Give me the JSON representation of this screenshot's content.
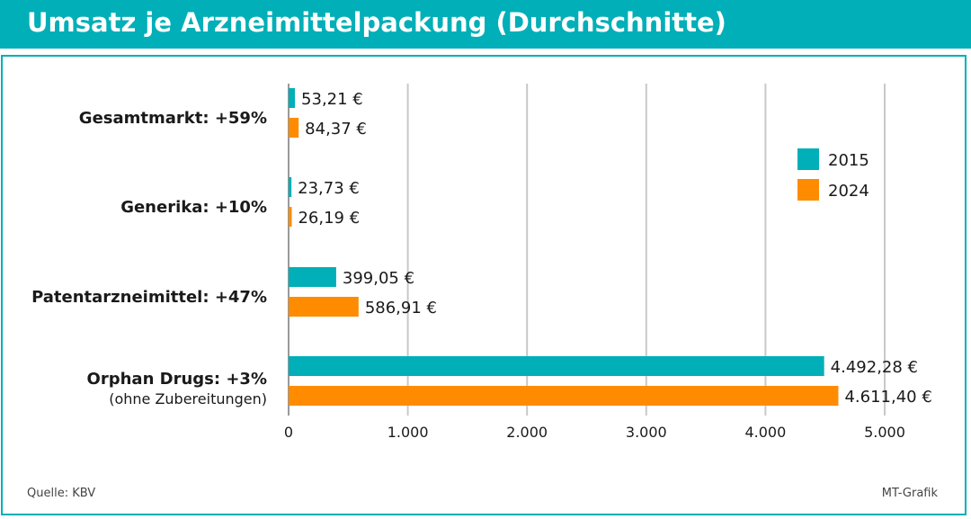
{
  "colors": {
    "accent": "#00afb7",
    "series_2015": "#00afb7",
    "series_2024": "#ff8c00",
    "grid": "#c8c8c8"
  },
  "footer": {
    "source": "Quelle: KBV",
    "credit": "MT-Grafik"
  },
  "chart_data": {
    "type": "bar",
    "orientation": "horizontal",
    "title": "Umsatz je Arzneimittelpackung (Durchschnitte)",
    "categories": [
      {
        "label": "Gesamtmarkt: +59%",
        "sublabel": ""
      },
      {
        "label": "Generika: +10%",
        "sublabel": ""
      },
      {
        "label": "Patentarzneimittel: +47%",
        "sublabel": ""
      },
      {
        "label": "Orphan Drugs: +3%",
        "sublabel": "(ohne Zubereitungen)"
      }
    ],
    "series": [
      {
        "name": "2015",
        "values": [
          53.21,
          23.73,
          399.05,
          4492.28
        ],
        "value_labels": [
          "53,21 €",
          "23,73 €",
          "399,05 €",
          "4.492,28 €"
        ]
      },
      {
        "name": "2024",
        "values": [
          84.37,
          26.19,
          586.91,
          4611.4
        ],
        "value_labels": [
          "84,37 €",
          "26,19 €",
          "586,91 €",
          "4.611,40 €"
        ]
      }
    ],
    "xlim": [
      0,
      5000
    ],
    "xticks": [
      0,
      1000,
      2000,
      3000,
      4000,
      5000
    ],
    "xtick_labels": [
      "0",
      "1.000",
      "2.000",
      "3.000",
      "4.000",
      "5.000"
    ],
    "grid": true,
    "legend": "right"
  }
}
